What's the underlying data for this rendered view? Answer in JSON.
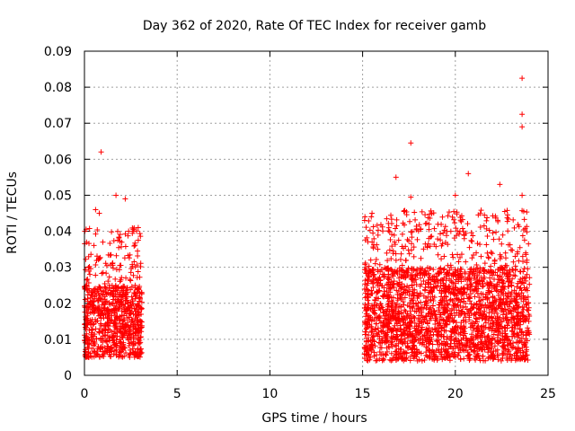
{
  "chart_data": {
    "type": "scatter",
    "title": "Day 362 of 2020, Rate Of TEC Index for receiver gamb",
    "xlabel": "GPS time / hours",
    "ylabel": "ROTI / TECUs",
    "xlim": [
      0,
      25
    ],
    "ylim": [
      0,
      0.09
    ],
    "x_ticks": [
      "0",
      "5",
      "10",
      "15",
      "20",
      "25"
    ],
    "y_ticks": [
      "0",
      "0.01",
      "0.02",
      "0.03",
      "0.04",
      "0.05",
      "0.06",
      "0.07",
      "0.08",
      "0.09"
    ],
    "grid": true,
    "marker": "+",
    "color": "#ff0000",
    "series": [
      {
        "name": "ROTI",
        "segments": [
          {
            "x_start": 0.0,
            "x_end": 3.1,
            "typical_range": [
              0.005,
              0.025
            ]
          },
          {
            "x_start": 15.1,
            "x_end": 24.0,
            "typical_range": [
              0.004,
              0.03
            ]
          }
        ],
        "notable_points": [
          {
            "x": 0.9,
            "y": 0.062
          },
          {
            "x": 0.6,
            "y": 0.046
          },
          {
            "x": 0.8,
            "y": 0.045
          },
          {
            "x": 1.7,
            "y": 0.05
          },
          {
            "x": 2.2,
            "y": 0.049
          },
          {
            "x": 2.9,
            "y": 0.041
          },
          {
            "x": 16.8,
            "y": 0.055
          },
          {
            "x": 17.6,
            "y": 0.0645
          },
          {
            "x": 17.6,
            "y": 0.0495
          },
          {
            "x": 20.0,
            "y": 0.05
          },
          {
            "x": 20.7,
            "y": 0.056
          },
          {
            "x": 22.4,
            "y": 0.053
          },
          {
            "x": 23.6,
            "y": 0.0825
          },
          {
            "x": 23.6,
            "y": 0.0725
          },
          {
            "x": 23.6,
            "y": 0.069
          },
          {
            "x": 23.6,
            "y": 0.05
          }
        ]
      }
    ]
  }
}
